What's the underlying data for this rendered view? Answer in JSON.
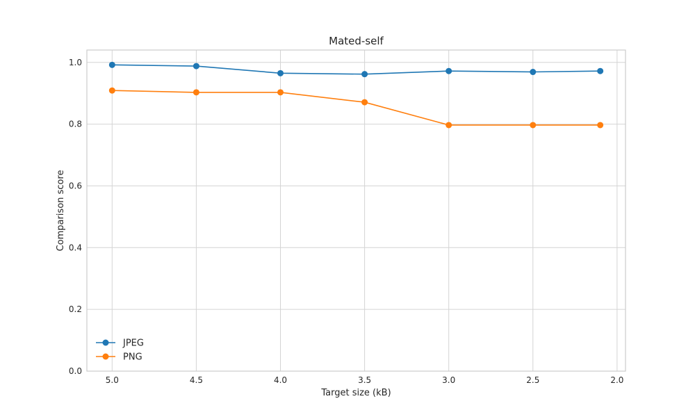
{
  "chart_data": {
    "type": "line",
    "title": "Mated-self",
    "xlabel": "Target size (kB)",
    "ylabel": "Comparison score",
    "x": [
      5.0,
      4.5,
      4.0,
      3.5,
      3.0,
      2.5,
      2.1
    ],
    "xlim": [
      5.15,
      1.95
    ],
    "x_inverted": true,
    "xticks": [
      5.0,
      4.5,
      4.0,
      3.5,
      3.0,
      2.5,
      2.0
    ],
    "xtick_labels": [
      "5.0",
      "4.5",
      "4.0",
      "3.5",
      "3.0",
      "2.5",
      "2.0"
    ],
    "ylim": [
      0.0,
      1.04
    ],
    "yticks": [
      0.0,
      0.2,
      0.4,
      0.6,
      0.8,
      1.0
    ],
    "ytick_labels": [
      "0.0",
      "0.2",
      "0.4",
      "0.6",
      "0.8",
      "1.0"
    ],
    "grid": true,
    "legend_position": "lower-left",
    "series": [
      {
        "name": "JPEG",
        "color": "#1f77b4",
        "marker": "circle",
        "values": [
          0.992,
          0.988,
          0.965,
          0.962,
          0.972,
          0.969,
          0.972
        ]
      },
      {
        "name": "PNG",
        "color": "#ff7f0e",
        "marker": "circle",
        "values": [
          0.909,
          0.903,
          0.903,
          0.871,
          0.797,
          0.797,
          0.797
        ]
      }
    ]
  }
}
